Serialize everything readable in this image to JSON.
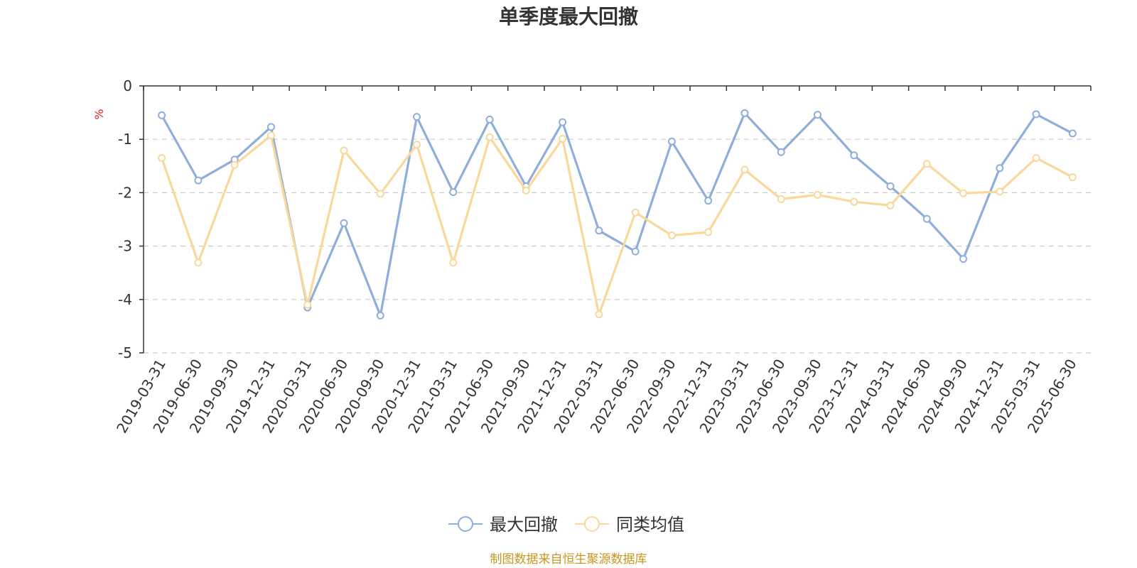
{
  "chart_data": {
    "type": "line",
    "title": "单季度最大回撤",
    "ylabel": "%",
    "ylim": [
      -5,
      0
    ],
    "yticks": [
      0,
      -1,
      -2,
      -3,
      -4,
      -5
    ],
    "grid": true,
    "legend_position": "bottom-center",
    "categories": [
      "2019-03-31",
      "2019-06-30",
      "2019-09-30",
      "2019-12-31",
      "2020-03-31",
      "2020-06-30",
      "2020-09-30",
      "2020-12-31",
      "2021-03-31",
      "2021-06-30",
      "2021-09-30",
      "2021-12-31",
      "2022-03-31",
      "2022-06-30",
      "2022-09-30",
      "2022-12-31",
      "2023-03-31",
      "2023-06-30",
      "2023-09-30",
      "2023-12-31",
      "2024-03-31",
      "2024-06-30",
      "2024-09-30",
      "2024-12-31",
      "2025-03-31",
      "2025-06-30"
    ],
    "series": [
      {
        "name": "最大回撤",
        "color": "#8eaedb",
        "values": [
          -0.55,
          -1.77,
          -1.38,
          -0.77,
          -4.15,
          -2.57,
          -4.3,
          -0.58,
          -1.99,
          -0.63,
          -1.88,
          -0.68,
          -2.71,
          -3.1,
          -1.04,
          -2.15,
          -0.51,
          -1.24,
          -0.54,
          -1.3,
          -1.88,
          -2.49,
          -3.24,
          -1.54,
          -0.53,
          -0.89
        ]
      },
      {
        "name": "同类均值",
        "color": "#f9d89a",
        "values": [
          -1.35,
          -3.31,
          -1.48,
          -0.93,
          -4.1,
          -1.21,
          -2.02,
          -1.1,
          -3.31,
          -0.96,
          -1.96,
          -0.99,
          -4.28,
          -2.37,
          -2.8,
          -2.74,
          -1.57,
          -2.12,
          -2.04,
          -2.17,
          -2.24,
          -1.46,
          -2.01,
          -1.98,
          -1.35,
          -1.71
        ]
      }
    ]
  },
  "source_note": "制图数据来自恒生聚源数据库",
  "colors": {
    "axis": "#333333",
    "grid": "#cccccc",
    "unit": "#e02020",
    "source": "#c8961e"
  }
}
